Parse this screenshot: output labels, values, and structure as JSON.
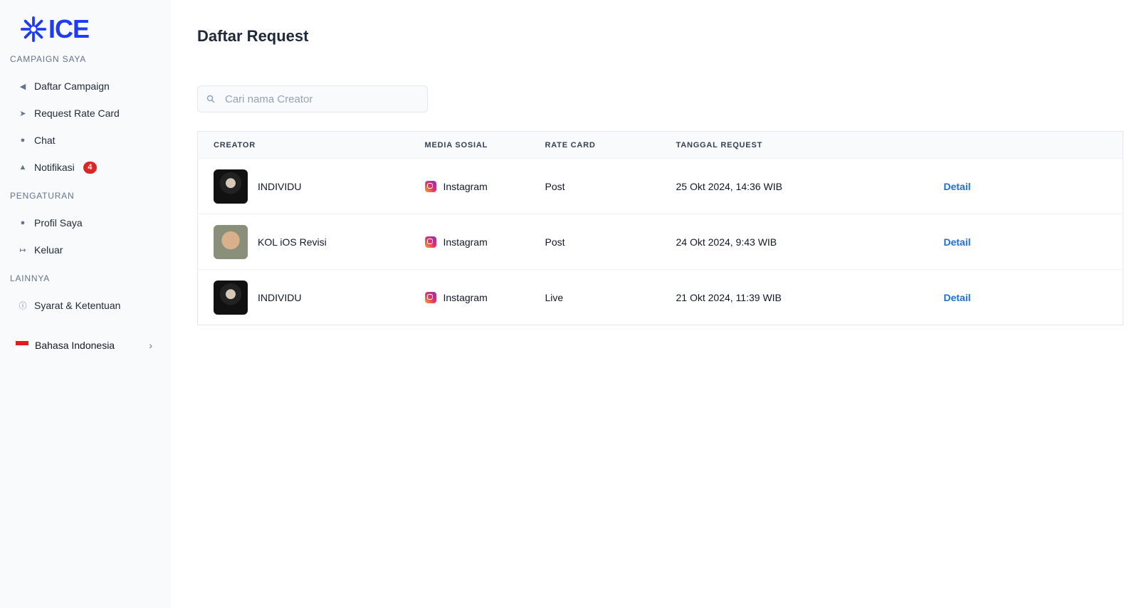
{
  "brand": {
    "name": "ICE",
    "color": "#1d3cf5"
  },
  "sidebar": {
    "sections": [
      {
        "title": "CAMPAIGN SAYA",
        "items": [
          {
            "label": "Daftar Campaign",
            "icon": "megaphone-icon"
          },
          {
            "label": "Request Rate Card",
            "icon": "send-icon"
          },
          {
            "label": "Chat",
            "icon": "chat-icon"
          },
          {
            "label": "Notifikasi",
            "icon": "bell-icon",
            "badge": "4"
          }
        ]
      },
      {
        "title": "PENGATURAN",
        "items": [
          {
            "label": "Profil Saya",
            "icon": "user-icon"
          },
          {
            "label": "Keluar",
            "icon": "logout-icon"
          }
        ]
      },
      {
        "title": "LAINNYA",
        "items": [
          {
            "label": "Syarat & Ketentuan",
            "icon": "info-icon"
          }
        ]
      }
    ],
    "language": "Bahasa Indonesia"
  },
  "main": {
    "title": "Daftar Request",
    "search_placeholder": "Cari nama Creator",
    "columns": [
      "CREATOR",
      "MEDIA SOSIAL",
      "RATE CARD",
      "TANGGAL REQUEST"
    ],
    "rows": [
      {
        "creator": "INDIVIDU",
        "media": "Instagram",
        "rate_card": "Post",
        "date": "25 Okt 2024, 14:36 WIB",
        "action": "Detail"
      },
      {
        "creator": "KOL iOS Revisi",
        "media": "Instagram",
        "rate_card": "Post",
        "date": "24 Okt 2024, 9:43 WIB",
        "action": "Detail"
      },
      {
        "creator": "INDIVIDU",
        "media": "Instagram",
        "rate_card": "Live",
        "date": "21 Okt 2024, 11:39 WIB",
        "action": "Detail"
      }
    ]
  }
}
